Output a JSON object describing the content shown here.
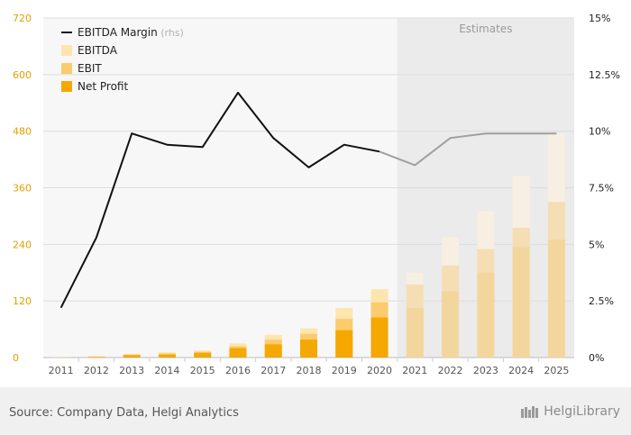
{
  "chart_data": {
    "type": "bar",
    "categories": [
      "2011",
      "2012",
      "2013",
      "2014",
      "2015",
      "2016",
      "2017",
      "2018",
      "2019",
      "2020",
      "2021",
      "2022",
      "2023",
      "2024",
      "2025"
    ],
    "series": [
      {
        "name": "EBITDA",
        "values": [
          0.5,
          3,
          8,
          11,
          15,
          30,
          48,
          62,
          105,
          145,
          180,
          255,
          310,
          385,
          475
        ]
      },
      {
        "name": "EBIT",
        "values": [
          0.3,
          2,
          6,
          9,
          12,
          24,
          38,
          50,
          82,
          117,
          155,
          195,
          230,
          275,
          330
        ]
      },
      {
        "name": "Net Profit",
        "values": [
          0.2,
          1,
          5,
          6,
          10,
          20,
          28,
          38,
          58,
          85,
          105,
          140,
          180,
          235,
          250
        ]
      },
      {
        "name": "EBITDA Margin",
        "axis": "right",
        "unit": "%",
        "values": [
          2.2,
          5.3,
          9.9,
          9.4,
          9.3,
          11.7,
          9.7,
          8.4,
          9.4,
          9.1,
          8.5,
          9.7,
          9.9,
          9.9,
          9.9
        ]
      }
    ],
    "estimates_from": "2021",
    "estimates_label": "Estimates",
    "ylim": [
      0,
      720
    ],
    "yticks": [
      0,
      120,
      240,
      360,
      480,
      600,
      720
    ],
    "y2lim": [
      0,
      15
    ],
    "y2ticks": [
      "0%",
      "2.5%",
      "5%",
      "7.5%",
      "10%",
      "12.5%",
      "15%"
    ],
    "legend": {
      "position": "top-left",
      "items": [
        {
          "label": "EBITDA Margin",
          "note": "(rhs)",
          "type": "line"
        },
        {
          "label": "EBITDA",
          "type": "bar"
        },
        {
          "label": "EBIT",
          "type": "bar"
        },
        {
          "label": "Net Profit",
          "type": "bar"
        }
      ]
    },
    "colors": {
      "ebitda": "#fde6ad",
      "ebit": "#fbcb6e",
      "net_profit": "#f5a800",
      "ebitda_est": "#f7efe1",
      "ebit_est": "#f5ddb4",
      "net_profit_est": "#f3d69d",
      "line": "#111111",
      "line_est": "#a0a0a0",
      "estimates_bg": "#ebebeb",
      "plot_bg": "#f7f7f7",
      "left_axis_text": "#e0a100",
      "right_axis_text": "#222222"
    },
    "grid": true
  },
  "footer": {
    "source": "Source: Company Data, Helgi Analytics",
    "logo_text": "HelgiLibrary"
  }
}
